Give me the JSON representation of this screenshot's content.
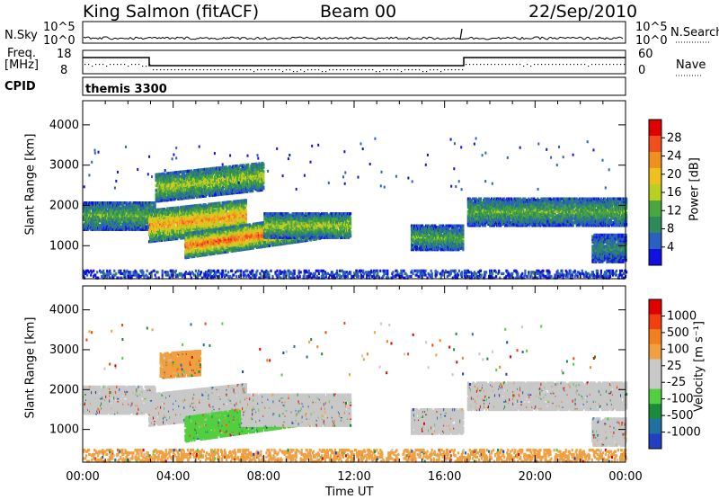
{
  "header": {
    "station": "King Salmon (fitACF)",
    "beam": "Beam 00",
    "date": "22/Sep/2010"
  },
  "top_panels": {
    "nsky_label": "N.Sky",
    "nsky_ticks": [
      "10^5",
      "10^0"
    ],
    "nsearch_label": "N.Search",
    "freq_label_line1": "Freq.",
    "freq_label_line2": "[MHz]",
    "freq_ticks": [
      "18",
      "8"
    ],
    "nave_ticks": [
      "60",
      "0"
    ],
    "nave_label": "Nave",
    "cpid_label": "CPID",
    "cpid_text": "themis 3300"
  },
  "colors": {
    "power_scale": [
      "#1010e0",
      "#2a60c0",
      "#2e8a5a",
      "#4aa640",
      "#b8d020",
      "#f0c020",
      "#f09020",
      "#f05020",
      "#e00000"
    ],
    "velocity_scale": [
      "#2040c0",
      "#2070a0",
      "#1a8a3c",
      "#50d040",
      "#c8c8c8",
      "#c8c8c8",
      "#f0a040",
      "#f08020",
      "#f04010",
      "#e00000"
    ]
  },
  "chart_data": [
    {
      "type": "heatmap",
      "name": "power",
      "ylabel": "Slant Range [km]",
      "xlabel": "Time UT",
      "xlim_hours": [
        0,
        24
      ],
      "x_tick_labels": [
        "00:00",
        "04:00",
        "08:00",
        "12:00",
        "16:00",
        "20:00",
        "00:00"
      ],
      "ylim_km": [
        180,
        4600
      ],
      "y_tick_labels": [
        "4000",
        "3000",
        "2000",
        "1000"
      ],
      "colorbar_label": "Power [dB]",
      "colorbar_ticks": [
        "28",
        "24",
        "20",
        "16",
        "12",
        "8",
        "4"
      ],
      "colorbar_range": [
        0,
        32
      ],
      "scatter_regions": [
        {
          "t": [
            0.0,
            3.2
          ],
          "r": [
            1400,
            2100
          ],
          "level": 3
        },
        {
          "t": [
            2.9,
            7.2
          ],
          "r": [
            1100,
            1900
          ],
          "level": 6,
          "slope": 60
        },
        {
          "t": [
            3.2,
            8.0
          ],
          "r": [
            2100,
            2800
          ],
          "level": 4,
          "slope": 60
        },
        {
          "t": [
            4.5,
            10.5
          ],
          "r": [
            700,
            1300
          ],
          "level": 7,
          "slope": 80
        },
        {
          "t": [
            8.0,
            11.8
          ],
          "r": [
            1200,
            1800
          ],
          "level": 4
        },
        {
          "t": [
            14.5,
            16.8
          ],
          "r": [
            900,
            1500
          ],
          "level": 3
        },
        {
          "t": [
            17.0,
            24.0
          ],
          "r": [
            1500,
            2200
          ],
          "level": 3
        },
        {
          "t": [
            22.5,
            24.0
          ],
          "r": [
            600,
            1300
          ],
          "level": 2
        },
        {
          "t": [
            0.0,
            24.0
          ],
          "r": [
            200,
            400
          ],
          "level": 1
        }
      ]
    },
    {
      "type": "heatmap",
      "name": "velocity",
      "ylabel": "Slant Range [km]",
      "xlabel": "Time UT",
      "xlim_hours": [
        0,
        24
      ],
      "x_tick_labels": [
        "00:00",
        "04:00",
        "08:00",
        "12:00",
        "16:00",
        "20:00",
        "00:00"
      ],
      "ylim_km": [
        180,
        4600
      ],
      "y_tick_labels": [
        "4000",
        "3000",
        "2000",
        "1000"
      ],
      "colorbar_label": "Velocity [m s⁻¹]",
      "colorbar_ticks": [
        "1000",
        "500",
        "100",
        "25",
        "-25",
        "-100",
        "-500",
        "-1000"
      ],
      "scatter_regions": [
        {
          "t": [
            0.0,
            3.2
          ],
          "r": [
            1400,
            2100
          ],
          "level": 4
        },
        {
          "t": [
            2.9,
            7.2
          ],
          "r": [
            1100,
            1900
          ],
          "level": 4,
          "slope": 60
        },
        {
          "t": [
            3.4,
            5.2
          ],
          "r": [
            2300,
            2900
          ],
          "level": 6,
          "slope": 40
        },
        {
          "t": [
            4.5,
            10.5
          ],
          "r": [
            700,
            1300
          ],
          "level": 3,
          "slope": 80
        },
        {
          "t": [
            7.0,
            11.8
          ],
          "r": [
            1100,
            1900
          ],
          "level": 4
        },
        {
          "t": [
            14.5,
            16.8
          ],
          "r": [
            900,
            1500
          ],
          "level": 4
        },
        {
          "t": [
            17.0,
            24.0
          ],
          "r": [
            1500,
            2200
          ],
          "level": 4
        },
        {
          "t": [
            22.5,
            24.0
          ],
          "r": [
            600,
            1300
          ],
          "level": 5
        },
        {
          "t": [
            0.0,
            24.0
          ],
          "r": [
            200,
            500
          ],
          "level": 6
        }
      ]
    }
  ]
}
